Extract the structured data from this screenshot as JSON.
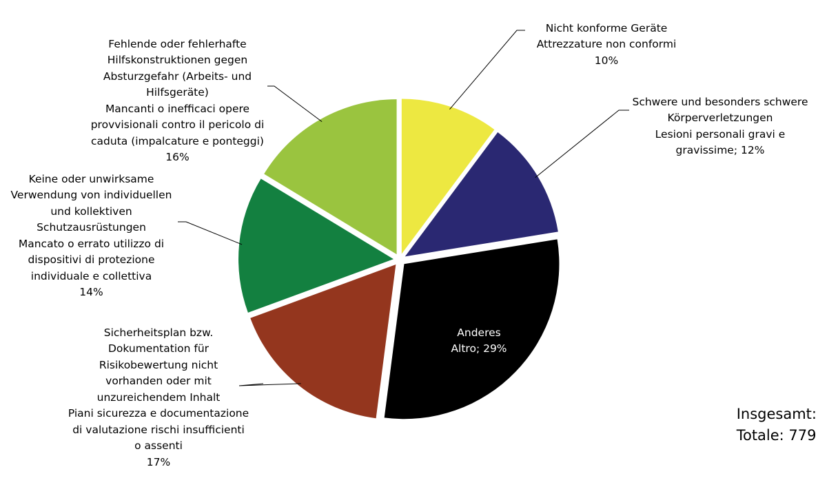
{
  "chart_data": {
    "type": "pie",
    "slices": [
      {
        "label": "Nicht konforme Geräte\nAttrezzature non conformi",
        "pct_label": "10%",
        "value": 10,
        "color": "#EDE841"
      },
      {
        "label": "Schwere und besonders schwere\nKörperverletzungen\nLesioni personali gravi e",
        "pct_label": "gravissime; 12%",
        "value": 12,
        "color": "#2A2872"
      },
      {
        "label": "Anderes\nAltro; 29%",
        "pct_label": "",
        "value": 29,
        "color": "#000000"
      },
      {
        "label": "Sicherheitsplan bzw.\nDokumentation für\nRisikobewertung nicht\nvorhanden oder mit\nunzureichendem Inhalt\nPiani sicurezza e documentazione\ndi valutazione rischi insufficienti\no assenti",
        "pct_label": "17%",
        "value": 17,
        "color": "#94361E"
      },
      {
        "label": "Keine oder unwirksame\nVerwendung von individuellen\nund kollektiven\nSchutzausrüstungen\nMancato o errato utilizzo di\ndispositivi di protezione\nindividuale e collettiva",
        "pct_label": "14%",
        "value": 14,
        "color": "#138040"
      },
      {
        "label": "Fehlende oder fehlerhafte\nHilfskonstruktionen gegen\nAbsturzgefahr (Arbeits- und\nHilfsgeräte)\nMancanti o inefficaci opere\nprovvisionali contro il pericolo di\ncaduta (impalcature e ponteggi)",
        "pct_label": "16%",
        "value": 16,
        "color": "#9AC43F"
      }
    ],
    "total": [
      "Insgesamt:",
      "Totale: 779"
    ]
  }
}
